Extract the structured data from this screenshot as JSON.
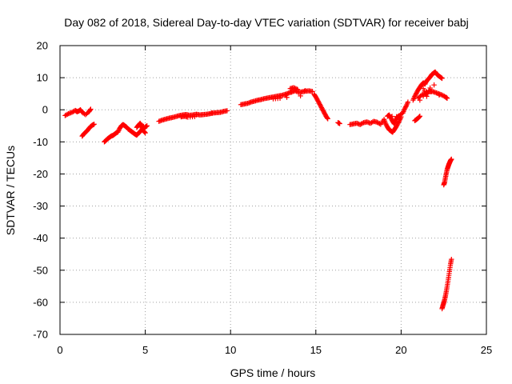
{
  "chart_data": {
    "type": "scatter",
    "title": "Day 082 of 2018, Sidereal Day-to-day VTEC variation (SDTVAR) for receiver babj",
    "xlabel": "GPS time / hours",
    "ylabel": "SDTVAR / TECUs",
    "xlim": [
      0,
      25
    ],
    "ylim": [
      -70,
      20
    ],
    "xticks": [
      0,
      5,
      10,
      15,
      20,
      25
    ],
    "yticks": [
      20,
      10,
      0,
      -10,
      -20,
      -30,
      -40,
      -50,
      -60,
      -70
    ],
    "grid": true,
    "marker": "+",
    "marker_color": "#ff0000",
    "series": [
      {
        "name": "SDTVAR",
        "segments": [
          [
            [
              0.3,
              -1.8
            ],
            [
              0.5,
              -1.2
            ],
            [
              0.7,
              -0.8
            ],
            [
              0.9,
              -0.2
            ],
            [
              1.0,
              -0.6
            ],
            [
              1.1,
              -0.4
            ],
            [
              1.2,
              0.0
            ],
            [
              1.3,
              -0.8
            ],
            [
              1.5,
              -1.5
            ],
            [
              1.7,
              -0.6
            ],
            [
              1.8,
              0.2
            ]
          ],
          [
            [
              1.3,
              -8.2
            ],
            [
              1.4,
              -7.5
            ],
            [
              1.5,
              -7.0
            ],
            [
              1.6,
              -6.5
            ],
            [
              1.7,
              -5.8
            ],
            [
              1.8,
              -5.2
            ],
            [
              1.9,
              -4.8
            ],
            [
              2.0,
              -4.5
            ]
          ],
          [
            [
              2.6,
              -10.0
            ],
            [
              2.7,
              -9.5
            ],
            [
              2.8,
              -9.0
            ],
            [
              2.9,
              -8.6
            ],
            [
              3.0,
              -8.2
            ],
            [
              3.1,
              -8.0
            ],
            [
              3.2,
              -7.6
            ],
            [
              3.3,
              -7.2
            ],
            [
              3.4,
              -6.9
            ],
            [
              3.5,
              -5.8
            ],
            [
              3.6,
              -5.0
            ],
            [
              3.7,
              -4.6
            ],
            [
              3.8,
              -5.0
            ],
            [
              3.9,
              -5.4
            ],
            [
              4.0,
              -6.0
            ],
            [
              4.1,
              -6.4
            ],
            [
              4.2,
              -6.8
            ],
            [
              4.3,
              -7.2
            ],
            [
              4.4,
              -7.6
            ],
            [
              4.5,
              -7.9
            ],
            [
              4.6,
              -7.3
            ],
            [
              4.7,
              -6.8
            ],
            [
              4.8,
              -6.2
            ],
            [
              4.9,
              -5.8
            ],
            [
              5.0,
              -5.4
            ],
            [
              5.1,
              -5.0
            ],
            [
              4.5,
              -5.5
            ],
            [
              4.6,
              -4.8
            ],
            [
              4.7,
              -4.2
            ],
            [
              4.8,
              -5.0
            ],
            [
              4.9,
              -6.6
            ],
            [
              5.0,
              -7.2
            ]
          ],
          [
            [
              5.8,
              -3.6
            ],
            [
              6.0,
              -3.2
            ],
            [
              6.2,
              -2.9
            ],
            [
              6.4,
              -2.6
            ],
            [
              6.6,
              -2.4
            ],
            [
              6.8,
              -2.1
            ],
            [
              7.0,
              -1.8
            ],
            [
              7.2,
              -1.6
            ],
            [
              7.4,
              -1.5
            ],
            [
              7.6,
              -1.7
            ],
            [
              7.8,
              -1.6
            ],
            [
              8.0,
              -1.4
            ],
            [
              8.2,
              -1.6
            ],
            [
              8.4,
              -1.5
            ],
            [
              8.6,
              -1.4
            ],
            [
              8.8,
              -1.2
            ],
            [
              9.0,
              -1.0
            ],
            [
              9.2,
              -0.9
            ],
            [
              9.4,
              -0.8
            ],
            [
              9.6,
              -0.5
            ],
            [
              9.8,
              -0.3
            ],
            [
              7.1,
              -2.2
            ],
            [
              7.3,
              -2.0
            ],
            [
              7.5,
              -2.3
            ],
            [
              7.9,
              -2.1
            ]
          ],
          [
            [
              10.6,
              1.6
            ],
            [
              10.8,
              1.8
            ],
            [
              11.0,
              2.0
            ],
            [
              11.2,
              2.4
            ],
            [
              11.4,
              2.7
            ],
            [
              11.6,
              3.0
            ],
            [
              11.8,
              3.2
            ],
            [
              12.0,
              3.5
            ],
            [
              12.2,
              3.7
            ],
            [
              12.4,
              3.9
            ],
            [
              12.6,
              4.1
            ],
            [
              12.8,
              4.3
            ],
            [
              13.0,
              4.5
            ],
            [
              13.2,
              4.8
            ],
            [
              13.4,
              5.2
            ],
            [
              13.6,
              5.6
            ],
            [
              13.8,
              5.9
            ],
            [
              14.0,
              5.4
            ],
            [
              14.2,
              5.6
            ],
            [
              14.4,
              5.8
            ],
            [
              14.6,
              5.9
            ],
            [
              14.8,
              5.7
            ],
            [
              13.5,
              6.6
            ],
            [
              13.7,
              6.9
            ],
            [
              13.9,
              6.4
            ],
            [
              12.9,
              3.6
            ],
            [
              12.5,
              3.4
            ],
            [
              14.9,
              4.8
            ],
            [
              15.0,
              4.0
            ],
            [
              15.1,
              3.0
            ],
            [
              15.2,
              2.0
            ],
            [
              15.3,
              1.0
            ],
            [
              15.4,
              0.0
            ],
            [
              15.5,
              -1.0
            ],
            [
              15.6,
              -2.0
            ],
            [
              15.7,
              -2.8
            ]
          ],
          [
            [
              16.3,
              -4.0
            ],
            [
              16.4,
              -4.3
            ]
          ],
          [
            [
              17.0,
              -4.6
            ],
            [
              17.2,
              -4.4
            ],
            [
              17.4,
              -4.2
            ],
            [
              17.6,
              -4.6
            ],
            [
              17.8,
              -4.0
            ],
            [
              18.0,
              -3.8
            ],
            [
              18.2,
              -4.2
            ],
            [
              18.4,
              -3.6
            ],
            [
              18.6,
              -3.9
            ],
            [
              18.8,
              -4.5
            ],
            [
              19.0,
              -3.0
            ],
            [
              19.1,
              -4.4
            ],
            [
              19.2,
              -5.4
            ],
            [
              19.3,
              -6.2
            ],
            [
              19.4,
              -6.6
            ],
            [
              19.5,
              -7.0
            ],
            [
              19.6,
              -6.2
            ],
            [
              19.7,
              -5.4
            ],
            [
              19.8,
              -4.4
            ],
            [
              19.9,
              -3.4
            ],
            [
              20.0,
              -2.2
            ],
            [
              19.2,
              -2.0
            ],
            [
              19.3,
              -1.6
            ],
            [
              19.4,
              -2.6
            ],
            [
              19.5,
              -3.6
            ],
            [
              19.6,
              -4.4
            ],
            [
              19.7,
              -3.0
            ],
            [
              19.8,
              -2.2
            ],
            [
              19.9,
              -1.8
            ],
            [
              20.1,
              -1.0
            ],
            [
              20.2,
              0.2
            ],
            [
              20.3,
              1.2
            ],
            [
              20.4,
              2.4
            ]
          ],
          [
            [
              20.8,
              -3.4
            ],
            [
              20.9,
              -3.0
            ],
            [
              21.0,
              -2.6
            ],
            [
              21.1,
              -2.0
            ]
          ],
          [
            [
              20.7,
              3.0
            ],
            [
              20.8,
              4.2
            ],
            [
              20.9,
              5.2
            ],
            [
              21.0,
              6.2
            ],
            [
              21.1,
              7.0
            ],
            [
              21.2,
              7.8
            ],
            [
              21.3,
              8.4
            ],
            [
              21.4,
              8.0
            ],
            [
              21.5,
              9.0
            ],
            [
              21.6,
              9.6
            ],
            [
              21.7,
              10.2
            ],
            [
              21.8,
              11.0
            ],
            [
              21.9,
              11.4
            ],
            [
              22.0,
              11.8
            ],
            [
              22.1,
              11.0
            ],
            [
              22.2,
              10.6
            ],
            [
              22.3,
              10.2
            ],
            [
              22.4,
              9.8
            ],
            [
              21.0,
              3.6
            ],
            [
              21.2,
              4.6
            ],
            [
              21.4,
              5.0
            ],
            [
              21.6,
              5.6
            ],
            [
              21.8,
              5.8
            ],
            [
              22.0,
              5.4
            ],
            [
              22.2,
              5.0
            ],
            [
              22.4,
              4.6
            ],
            [
              22.6,
              4.0
            ],
            [
              22.7,
              3.6
            ],
            [
              21.3,
              6.6
            ],
            [
              21.5,
              4.2
            ],
            [
              21.7,
              6.8
            ],
            [
              21.1,
              3.0
            ]
          ],
          [
            [
              22.5,
              -23.4
            ],
            [
              22.55,
              -22.6
            ],
            [
              22.6,
              -21.2
            ],
            [
              22.65,
              -19.8
            ],
            [
              22.7,
              -18.6
            ],
            [
              22.75,
              -17.8
            ],
            [
              22.8,
              -17.0
            ],
            [
              22.85,
              -16.4
            ],
            [
              22.9,
              -15.8
            ],
            [
              22.95,
              -15.4
            ]
          ],
          [
            [
              22.4,
              -62.0
            ],
            [
              22.45,
              -61.0
            ],
            [
              22.5,
              -60.2
            ],
            [
              22.55,
              -59.2
            ],
            [
              22.6,
              -58.0
            ],
            [
              22.65,
              -56.6
            ],
            [
              22.7,
              -55.0
            ],
            [
              22.75,
              -53.4
            ],
            [
              22.8,
              -51.6
            ],
            [
              22.85,
              -49.8
            ],
            [
              22.9,
              -48.0
            ],
            [
              22.95,
              -46.6
            ]
          ]
        ]
      }
    ]
  }
}
